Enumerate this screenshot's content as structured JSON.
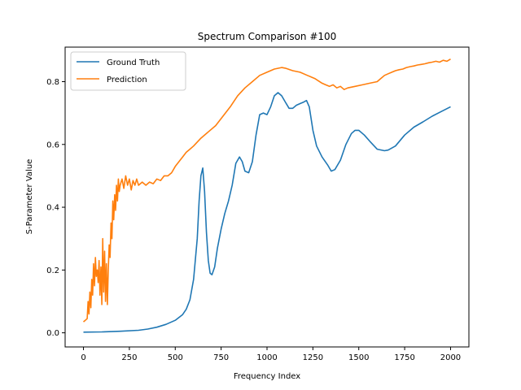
{
  "chart_data": {
    "type": "line",
    "title": "Spectrum Comparison #100",
    "xlabel": "Frequency Index",
    "ylabel": "S-Parameter Value",
    "xlim": [
      -100,
      2100
    ],
    "ylim": [
      -0.045,
      0.91
    ],
    "xticks": [
      0,
      250,
      500,
      750,
      1000,
      1250,
      1500,
      1750,
      2000
    ],
    "yticks": [
      0.0,
      0.2,
      0.4,
      0.6,
      0.8
    ],
    "grid": false,
    "legend_position": "top-left",
    "series": [
      {
        "name": "Ground Truth",
        "color": "#1f77b4",
        "x": [
          0,
          100,
          200,
          300,
          350,
          400,
          450,
          500,
          540,
          560,
          580,
          600,
          620,
          630,
          640,
          650,
          660,
          670,
          680,
          690,
          700,
          715,
          730,
          750,
          770,
          790,
          810,
          830,
          850,
          865,
          880,
          900,
          920,
          940,
          960,
          980,
          1000,
          1020,
          1040,
          1060,
          1080,
          1100,
          1120,
          1140,
          1160,
          1180,
          1200,
          1215,
          1230,
          1250,
          1270,
          1300,
          1330,
          1350,
          1370,
          1400,
          1430,
          1460,
          1480,
          1500,
          1530,
          1560,
          1600,
          1640,
          1660,
          1700,
          1750,
          1800,
          1850,
          1900,
          1950,
          2000
        ],
        "values": [
          0.002,
          0.003,
          0.005,
          0.008,
          0.012,
          0.018,
          0.027,
          0.04,
          0.058,
          0.075,
          0.105,
          0.17,
          0.3,
          0.42,
          0.5,
          0.525,
          0.45,
          0.32,
          0.23,
          0.19,
          0.185,
          0.21,
          0.27,
          0.33,
          0.38,
          0.42,
          0.47,
          0.54,
          0.56,
          0.545,
          0.515,
          0.51,
          0.545,
          0.63,
          0.695,
          0.7,
          0.695,
          0.72,
          0.755,
          0.765,
          0.755,
          0.735,
          0.715,
          0.715,
          0.725,
          0.73,
          0.735,
          0.74,
          0.72,
          0.645,
          0.595,
          0.56,
          0.535,
          0.515,
          0.52,
          0.55,
          0.6,
          0.635,
          0.645,
          0.645,
          0.63,
          0.61,
          0.585,
          0.58,
          0.582,
          0.595,
          0.63,
          0.655,
          0.672,
          0.69,
          0.705,
          0.72
        ]
      },
      {
        "name": "Prediction",
        "color": "#ff7f0e",
        "x": [
          0,
          10,
          20,
          25,
          30,
          35,
          40,
          45,
          50,
          55,
          60,
          65,
          70,
          75,
          80,
          85,
          90,
          95,
          100,
          105,
          110,
          115,
          120,
          125,
          130,
          135,
          140,
          145,
          150,
          155,
          160,
          165,
          170,
          175,
          180,
          185,
          190,
          195,
          200,
          210,
          220,
          230,
          240,
          250,
          260,
          270,
          280,
          290,
          300,
          320,
          340,
          360,
          380,
          400,
          420,
          440,
          460,
          480,
          500,
          520,
          540,
          560,
          580,
          600,
          640,
          680,
          720,
          760,
          800,
          840,
          880,
          920,
          960,
          1000,
          1040,
          1080,
          1100,
          1140,
          1180,
          1220,
          1260,
          1300,
          1320,
          1340,
          1360,
          1380,
          1400,
          1420,
          1440,
          1480,
          1520,
          1560,
          1600,
          1620,
          1640,
          1660,
          1680,
          1700,
          1720,
          1740,
          1760,
          1780,
          1800,
          1820,
          1840,
          1860,
          1880,
          1900,
          1920,
          1940,
          1960,
          1980,
          2000
        ],
        "values": [
          0.035,
          0.04,
          0.045,
          0.1,
          0.06,
          0.13,
          0.08,
          0.17,
          0.12,
          0.22,
          0.15,
          0.24,
          0.18,
          0.2,
          0.16,
          0.23,
          0.12,
          0.21,
          0.09,
          0.3,
          0.13,
          0.26,
          0.1,
          0.22,
          0.09,
          0.2,
          0.28,
          0.24,
          0.35,
          0.3,
          0.42,
          0.36,
          0.44,
          0.39,
          0.47,
          0.42,
          0.49,
          0.45,
          0.47,
          0.49,
          0.46,
          0.5,
          0.47,
          0.49,
          0.455,
          0.485,
          0.47,
          0.49,
          0.47,
          0.48,
          0.47,
          0.48,
          0.475,
          0.49,
          0.485,
          0.5,
          0.5,
          0.51,
          0.53,
          0.545,
          0.56,
          0.575,
          0.585,
          0.595,
          0.62,
          0.64,
          0.66,
          0.69,
          0.72,
          0.755,
          0.78,
          0.8,
          0.82,
          0.83,
          0.84,
          0.845,
          0.843,
          0.835,
          0.83,
          0.82,
          0.81,
          0.795,
          0.79,
          0.785,
          0.79,
          0.78,
          0.785,
          0.775,
          0.78,
          0.785,
          0.79,
          0.795,
          0.8,
          0.81,
          0.82,
          0.825,
          0.83,
          0.835,
          0.838,
          0.84,
          0.845,
          0.848,
          0.85,
          0.853,
          0.855,
          0.857,
          0.86,
          0.862,
          0.865,
          0.862,
          0.868,
          0.865,
          0.872
        ]
      }
    ]
  }
}
